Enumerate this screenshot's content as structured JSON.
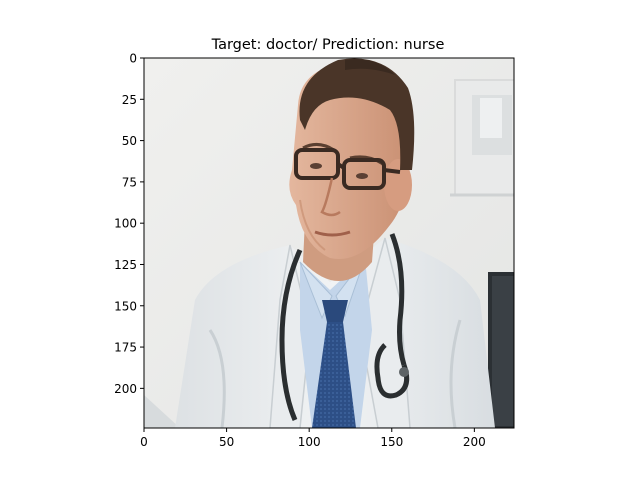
{
  "figure": {
    "title": "Target: doctor/ Prediction: nurse"
  },
  "image_content": {
    "description_icon": "doctor-portrait-image",
    "x_extent": [
      0,
      224
    ],
    "y_extent": [
      224,
      0
    ]
  },
  "axes": {
    "x_ticks": [
      {
        "value": 0,
        "label": "0"
      },
      {
        "value": 50,
        "label": "50"
      },
      {
        "value": 100,
        "label": "100"
      },
      {
        "value": 150,
        "label": "150"
      },
      {
        "value": 200,
        "label": "200"
      }
    ],
    "y_ticks": [
      {
        "value": 0,
        "label": "0"
      },
      {
        "value": 25,
        "label": "25"
      },
      {
        "value": 50,
        "label": "50"
      },
      {
        "value": 75,
        "label": "75"
      },
      {
        "value": 100,
        "label": "100"
      },
      {
        "value": 125,
        "label": "125"
      },
      {
        "value": 150,
        "label": "150"
      },
      {
        "value": 175,
        "label": "175"
      },
      {
        "value": 200,
        "label": "200"
      }
    ]
  },
  "colors": {
    "background": "#ececea",
    "coat": "#e8ebee",
    "shirt": "#c3d5ea",
    "tie": "#2d4f86",
    "skin": "#dba88d",
    "hair": "#4a3528",
    "stethoscope": "#2a2e30",
    "glasses": "#3a2a22",
    "monitor": "#2b3034"
  }
}
